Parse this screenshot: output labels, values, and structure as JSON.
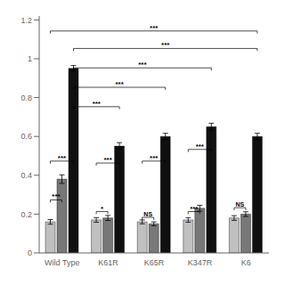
{
  "chart_data": {
    "type": "bar",
    "categories": [
      "Wild Type",
      "K61R",
      "K65R",
      "K347R",
      "K6"
    ],
    "series": [
      {
        "color": "#c0c0c0",
        "values": [
          0.16,
          0.17,
          0.16,
          0.17,
          0.18
        ],
        "errors": [
          0.012,
          0.012,
          0.01,
          0.012,
          0.012
        ]
      },
      {
        "color": "#787878",
        "values": [
          0.38,
          0.18,
          0.15,
          0.23,
          0.2
        ],
        "errors": [
          0.022,
          0.013,
          0.01,
          0.015,
          0.012
        ]
      },
      {
        "color": "#101010",
        "values": [
          0.95,
          0.55,
          0.6,
          0.65,
          0.6
        ],
        "errors": [
          0.015,
          0.018,
          0.016,
          0.018,
          0.016
        ]
      }
    ],
    "ylim": [
      0,
      1.22
    ],
    "yticks": [
      0,
      0.2,
      0.4,
      0.6,
      0.8,
      1,
      1.2
    ],
    "grid": false,
    "annotations": [
      {
        "text": "***",
        "from": [
          "Wild Type",
          0
        ],
        "to": [
          "Wild Type",
          1
        ],
        "y": 0.26
      },
      {
        "text": "***",
        "from": [
          "Wild Type",
          0
        ],
        "to": [
          "Wild Type",
          2
        ],
        "y": 0.46
      },
      {
        "text": "*",
        "from": [
          "K61R",
          0
        ],
        "to": [
          "K61R",
          1
        ],
        "y": 0.2
      },
      {
        "text": "***",
        "from": [
          "K61R",
          0
        ],
        "to": [
          "K61R",
          2
        ],
        "y": 0.45
      },
      {
        "text": "NS",
        "from": [
          "K65R",
          0
        ],
        "to": [
          "K65R",
          1
        ],
        "y": 0.17
      },
      {
        "text": "***",
        "from": [
          "K65R",
          0
        ],
        "to": [
          "K65R",
          2
        ],
        "y": 0.46
      },
      {
        "text": "***",
        "from": [
          "K347R",
          0
        ],
        "to": [
          "K347R",
          1
        ],
        "y": 0.2
      },
      {
        "text": "***",
        "from": [
          "K347R",
          0
        ],
        "to": [
          "K347R",
          2
        ],
        "y": 0.52
      },
      {
        "text": "NS",
        "from": [
          "K6",
          0
        ],
        "to": [
          "K6",
          1
        ],
        "y": 0.22
      },
      {
        "text": "***",
        "from": [
          "Wild Type",
          2
        ],
        "to": [
          "K61R",
          2
        ],
        "y": 0.74
      },
      {
        "text": "***",
        "from": [
          "Wild Type",
          2
        ],
        "to": [
          "K65R",
          2
        ],
        "y": 0.84
      },
      {
        "text": "***",
        "from": [
          "Wild Type",
          2
        ],
        "to": [
          "K347R",
          2
        ],
        "y": 0.94
      },
      {
        "text": "***",
        "from": [
          "Wild Type",
          2
        ],
        "to": [
          "K6",
          2
        ],
        "y": 1.04
      },
      {
        "text": "***",
        "from": [
          "Wild Type",
          0
        ],
        "to": [
          "K6",
          2
        ],
        "y": 1.13
      }
    ]
  }
}
